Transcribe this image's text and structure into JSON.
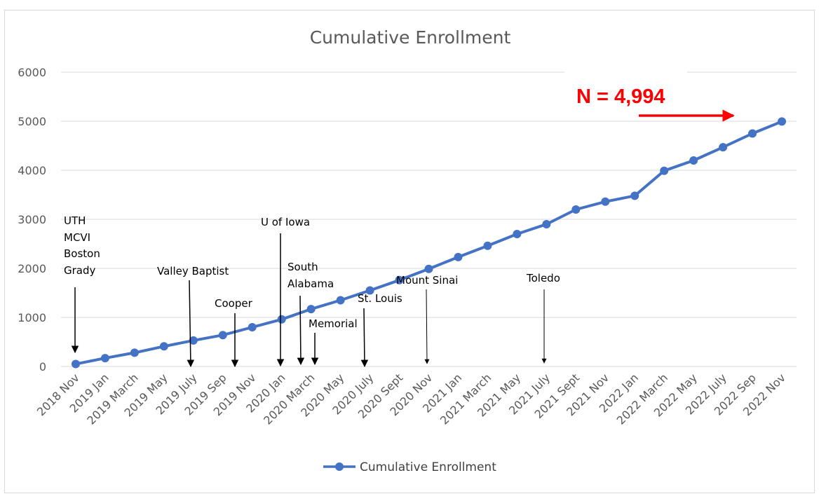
{
  "chart_data": {
    "type": "line",
    "title": "Cumulative Enrollment",
    "xlabel": "",
    "ylabel": "",
    "ylim": [
      0,
      6000
    ],
    "yticks": [
      0,
      1000,
      2000,
      3000,
      4000,
      5000,
      6000
    ],
    "grid": true,
    "legend_position": "bottom",
    "categories": [
      "2018 Nov",
      "2019 Jan",
      "2019 March",
      "2019 May",
      "2019 July",
      "2019 Sep",
      "2019 Nov",
      "2020 Jan",
      "2020 March",
      "2020 May",
      "2020 July",
      "2020 Sept",
      "2020 Nov",
      "2021 Jan",
      "2021 March",
      "2021 May",
      "2021 July",
      "2021 Sept",
      "2021 Nov",
      "2022 Jan",
      "2022 March",
      "2022 May",
      "2022 July",
      "2022 Sep",
      "2022 Nov"
    ],
    "series": [
      {
        "name": "Cumulative Enrollment",
        "color": "#4472c4",
        "values": [
          50,
          170,
          280,
          410,
          530,
          640,
          800,
          960,
          1170,
          1350,
          1550,
          1760,
          1990,
          2230,
          2460,
          2700,
          2900,
          3200,
          3360,
          3480,
          3990,
          4200,
          4470,
          4750,
          4994
        ]
      }
    ],
    "annotations": {
      "total_label": "N = 4,994",
      "total_color": "#ff0000",
      "sites": [
        {
          "lines": [
            "UTH",
            "MCVI",
            "Boston",
            "Grady"
          ],
          "at": "2018 Nov"
        },
        {
          "lines": [
            "Valley Baptist"
          ],
          "at": "2019 July"
        },
        {
          "lines": [
            "Cooper"
          ],
          "at": "2019 Sep"
        },
        {
          "lines": [
            "U of Iowa"
          ],
          "at": "2020 Jan"
        },
        {
          "lines": [
            "South",
            "Alabama"
          ],
          "at": "2020 March"
        },
        {
          "lines": [
            "Memorial"
          ],
          "at": "2020 March"
        },
        {
          "lines": [
            "St. Louis"
          ],
          "at": "2020 July"
        },
        {
          "lines": [
            "Mount Sinai"
          ],
          "at": "2020 Nov"
        },
        {
          "lines": [
            "Toledo"
          ],
          "at": "2021 July"
        }
      ]
    }
  }
}
